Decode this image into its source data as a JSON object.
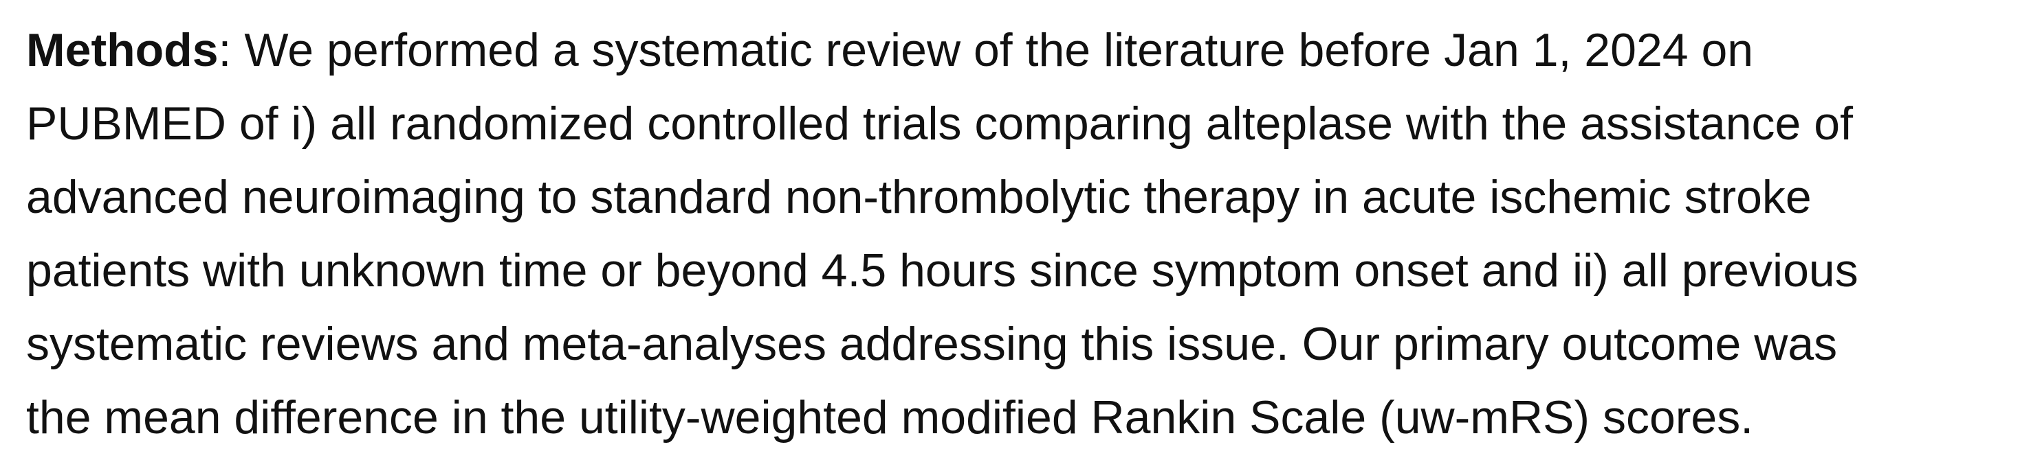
{
  "abstract": {
    "heading": "Methods",
    "heading_sep": ": ",
    "line1": "We performed a systematic review of the literature before Jan 1, 2024 on",
    "line2": "PUBMED of i) all randomized controlled trials comparing alteplase with the assistance of",
    "line3": "advanced neuroimaging to standard non-thrombolytic therapy in acute ischemic stroke",
    "line4": "patients with unknown time or beyond 4.5 hours since symptom onset and ii) all previous",
    "line5": "systematic reviews and meta-analyses addressing this issue. Our primary outcome was",
    "line6": "the mean difference in the utility-weighted modified Rankin Scale (uw-mRS) scores."
  }
}
